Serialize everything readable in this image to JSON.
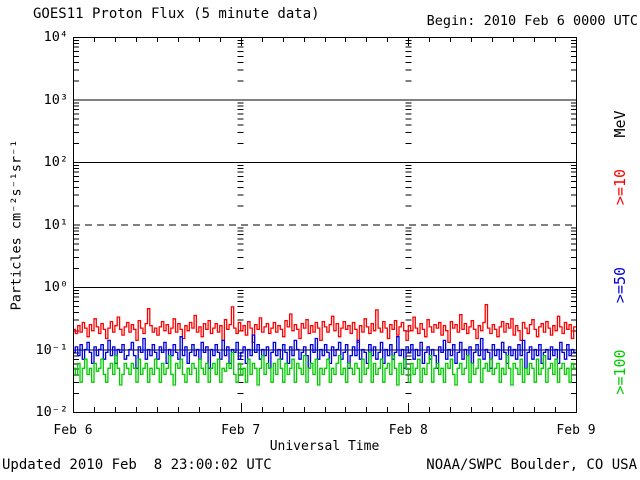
{
  "header": {
    "title": "GOES11 Proton Flux (5 minute data)",
    "begin_label": "Begin: 2010 Feb 6 0000 UTC"
  },
  "footer": {
    "updated": "Updated 2010 Feb  8 23:00:02 UTC",
    "credit": "NOAA/SWPC Boulder, CO USA"
  },
  "chart_data": {
    "type": "line",
    "title": "GOES11 Proton Flux (5 minute data)",
    "xlabel": "Universal Time",
    "ylabel": "Particles cm⁻²s⁻¹sr⁻¹",
    "x_tick_labels": [
      "Feb 6",
      "Feb 7",
      "Feb 8",
      "Feb 9"
    ],
    "y_tick_labels": [
      "10⁴",
      "10³",
      "10²",
      "10¹",
      "10⁰",
      "10⁻¹",
      "10⁻²"
    ],
    "y_log_range": [
      -2,
      4
    ],
    "x_range_days": [
      0,
      3
    ],
    "grid": {
      "solid_decades": [
        3,
        2,
        0,
        -1
      ],
      "dashed_decades": [
        1
      ],
      "minor_tick_hours": 3
    },
    "legend": {
      "unit_label": "MeV",
      "unit_color": "#000000",
      "entries": [
        {
          "label": ">=10",
          "color": "#ff0000"
        },
        {
          "label": ">=50",
          "color": "#0000dd"
        },
        {
          "label": ">=100",
          "color": "#00cc00"
        }
      ]
    },
    "sample_interval_minutes": 20,
    "series": [
      {
        "name": ">=10 MeV",
        "color": "#ff0000",
        "values": [
          0.21,
          0.18,
          0.24,
          0.19,
          0.27,
          0.22,
          0.16,
          0.25,
          0.2,
          0.31,
          0.23,
          0.18,
          0.26,
          0.21,
          0.15,
          0.22,
          0.28,
          0.19,
          0.24,
          0.33,
          0.21,
          0.17,
          0.23,
          0.27,
          0.19,
          0.25,
          0.21,
          0.14,
          0.29,
          0.22,
          0.18,
          0.26,
          0.45,
          0.24,
          0.19,
          0.22,
          0.17,
          0.23,
          0.28,
          0.2,
          0.25,
          0.18,
          0.22,
          0.31,
          0.19,
          0.26,
          0.21,
          0.15,
          0.24,
          0.2,
          0.27,
          0.22,
          0.35,
          0.19,
          0.23,
          0.16,
          0.26,
          0.21,
          0.29,
          0.18,
          0.22,
          0.26,
          0.19,
          0.24,
          0.14,
          0.3,
          0.21,
          0.25,
          0.48,
          0.22,
          0.18,
          0.27,
          0.2,
          0.24,
          0.17,
          0.28,
          0.22,
          0.13,
          0.25,
          0.21,
          0.32,
          0.19,
          0.23,
          0.26,
          0.18,
          0.22,
          0.27,
          0.19,
          0.24,
          0.21,
          0.16,
          0.29,
          0.23,
          0.37,
          0.2,
          0.25,
          0.21,
          0.15,
          0.26,
          0.22,
          0.3,
          0.18,
          0.24,
          0.19,
          0.27,
          0.22,
          0.14,
          0.28,
          0.23,
          0.19,
          0.25,
          0.34,
          0.2,
          0.26,
          0.16,
          0.22,
          0.28,
          0.21,
          0.24,
          0.18,
          0.27,
          0.21,
          0.13,
          0.24,
          0.19,
          0.31,
          0.23,
          0.18,
          0.26,
          0.2,
          0.43,
          0.22,
          0.19,
          0.28,
          0.22,
          0.15,
          0.25,
          0.21,
          0.29,
          0.17,
          0.23,
          0.27,
          0.2,
          0.14,
          0.24,
          0.2,
          0.33,
          0.22,
          0.18,
          0.26,
          0.21,
          0.16,
          0.3,
          0.23,
          0.19,
          0.25,
          0.22,
          0.27,
          0.17,
          0.24,
          0.2,
          0.13,
          0.28,
          0.22,
          0.25,
          0.19,
          0.36,
          0.21,
          0.26,
          0.18,
          0.23,
          0.29,
          0.21,
          0.15,
          0.24,
          0.2,
          0.27,
          0.52,
          0.22,
          0.18,
          0.25,
          0.21,
          0.16,
          0.23,
          0.28,
          0.19,
          0.26,
          0.22,
          0.31,
          0.17,
          0.24,
          0.2,
          0.14,
          0.27,
          0.22,
          0.18,
          0.25,
          0.3,
          0.21,
          0.16,
          0.23,
          0.26,
          0.19,
          0.28,
          0.22,
          0.17,
          0.24,
          0.2,
          0.34,
          0.23,
          0.18,
          0.27,
          0.21,
          0.25,
          0.15,
          0.23
        ]
      },
      {
        "name": ">=50 MeV",
        "color": "#0000dd",
        "values": [
          0.09,
          0.11,
          0.08,
          0.12,
          0.07,
          0.1,
          0.13,
          0.09,
          0.06,
          0.11,
          0.08,
          0.1,
          0.12,
          0.07,
          0.09,
          0.14,
          0.08,
          0.11,
          0.06,
          0.1,
          0.09,
          0.12,
          0.07,
          0.08,
          0.1,
          0.13,
          0.08,
          0.05,
          0.11,
          0.09,
          0.15,
          0.07,
          0.1,
          0.08,
          0.12,
          0.09,
          0.07,
          0.11,
          0.09,
          0.13,
          0.06,
          0.1,
          0.08,
          0.12,
          0.09,
          0.07,
          0.16,
          0.08,
          0.11,
          0.06,
          0.09,
          0.12,
          0.08,
          0.1,
          0.07,
          0.13,
          0.09,
          0.11,
          0.05,
          0.1,
          0.08,
          0.12,
          0.09,
          0.07,
          0.14,
          0.08,
          0.11,
          0.06,
          0.1,
          0.09,
          0.13,
          0.07,
          0.09,
          0.11,
          0.06,
          0.1,
          0.08,
          0.17,
          0.09,
          0.12,
          0.07,
          0.1,
          0.08,
          0.11,
          0.05,
          0.09,
          0.13,
          0.08,
          0.1,
          0.07,
          0.12,
          0.09,
          0.06,
          0.11,
          0.08,
          0.14,
          0.1,
          0.07,
          0.09,
          0.11,
          0.08,
          0.05,
          0.12,
          0.09,
          0.15,
          0.07,
          0.1,
          0.08,
          0.12,
          0.09,
          0.06,
          0.11,
          0.08,
          0.1,
          0.13,
          0.07,
          0.09,
          0.12,
          0.05,
          0.08,
          0.11,
          0.08,
          0.14,
          0.07,
          0.1,
          0.09,
          0.06,
          0.12,
          0.08,
          0.11,
          0.07,
          0.09,
          0.13,
          0.06,
          0.1,
          0.08,
          0.12,
          0.07,
          0.09,
          0.16,
          0.08,
          0.1,
          0.05,
          0.11,
          0.09,
          0.12,
          0.07,
          0.1,
          0.08,
          0.13,
          0.06,
          0.09,
          0.11,
          0.07,
          0.1,
          0.08,
          0.05,
          0.11,
          0.09,
          0.14,
          0.07,
          0.1,
          0.08,
          0.12,
          0.06,
          0.09,
          0.13,
          0.07,
          0.1,
          0.08,
          0.11,
          0.06,
          0.09,
          0.12,
          0.08,
          0.15,
          0.07,
          0.1,
          0.09,
          0.05,
          0.12,
          0.08,
          0.1,
          0.07,
          0.13,
          0.09,
          0.06,
          0.11,
          0.08,
          0.1,
          0.07,
          0.12,
          0.08,
          0.14,
          0.05,
          0.09,
          0.11,
          0.07,
          0.1,
          0.08,
          0.12,
          0.06,
          0.09,
          0.1,
          0.07,
          0.11,
          0.08,
          0.1,
          0.06,
          0.13,
          0.09,
          0.07,
          0.12,
          0.08,
          0.1,
          0.09
        ]
      },
      {
        "name": ">=100 MeV",
        "color": "#00cc00",
        "values": [
          0.05,
          0.04,
          0.06,
          0.03,
          0.05,
          0.07,
          0.04,
          0.05,
          0.03,
          0.06,
          0.045,
          0.05,
          0.07,
          0.04,
          0.03,
          0.05,
          0.06,
          0.04,
          0.08,
          0.05,
          0.027,
          0.04,
          0.06,
          0.05,
          0.04,
          0.06,
          0.05,
          0.03,
          0.07,
          0.04,
          0.05,
          0.06,
          0.03,
          0.05,
          0.04,
          0.07,
          0.05,
          0.03,
          0.06,
          0.04,
          0.05,
          0.08,
          0.04,
          0.027,
          0.06,
          0.05,
          0.07,
          0.04,
          0.03,
          0.05,
          0.04,
          0.06,
          0.05,
          0.03,
          0.07,
          0.05,
          0.04,
          0.06,
          0.03,
          0.05,
          0.06,
          0.04,
          0.07,
          0.03,
          0.05,
          0.045,
          0.06,
          0.05,
          0.09,
          0.04,
          0.03,
          0.06,
          0.04,
          0.05,
          0.03,
          0.07,
          0.04,
          0.06,
          0.05,
          0.027,
          0.05,
          0.08,
          0.04,
          0.06,
          0.05,
          0.03,
          0.06,
          0.04,
          0.07,
          0.05,
          0.03,
          0.06,
          0.04,
          0.05,
          0.07,
          0.03,
          0.06,
          0.05,
          0.04,
          0.08,
          0.03,
          0.05,
          0.06,
          0.04,
          0.07,
          0.027,
          0.05,
          0.04,
          0.05,
          0.07,
          0.03,
          0.05,
          0.04,
          0.06,
          0.08,
          0.04,
          0.05,
          0.03,
          0.06,
          0.05,
          0.04,
          0.06,
          0.05,
          0.03,
          0.07,
          0.04,
          0.05,
          0.09,
          0.03,
          0.06,
          0.04,
          0.05,
          0.07,
          0.03,
          0.05,
          0.06,
          0.04,
          0.08,
          0.05,
          0.027,
          0.06,
          0.04,
          0.07,
          0.05,
          0.03,
          0.06,
          0.04,
          0.05,
          0.07,
          0.03,
          0.05,
          0.04,
          0.06,
          0.08,
          0.03,
          0.05,
          0.06,
          0.04,
          0.05,
          0.03,
          0.06,
          0.05,
          0.07,
          0.04,
          0.027,
          0.05,
          0.06,
          0.04,
          0.05,
          0.08,
          0.03,
          0.06,
          0.04,
          0.05,
          0.07,
          0.03,
          0.05,
          0.06,
          0.045,
          0.07,
          0.04,
          0.05,
          0.06,
          0.03,
          0.05,
          0.04,
          0.08,
          0.05,
          0.027,
          0.06,
          0.05,
          0.04,
          0.07,
          0.03,
          0.05,
          0.04,
          0.06,
          0.05,
          0.03,
          0.07,
          0.04,
          0.05,
          0.08,
          0.03,
          0.05,
          0.06,
          0.04,
          0.07,
          0.03,
          0.05,
          0.06,
          0.04,
          0.05,
          0.03,
          0.06,
          0.05
        ]
      }
    ]
  }
}
